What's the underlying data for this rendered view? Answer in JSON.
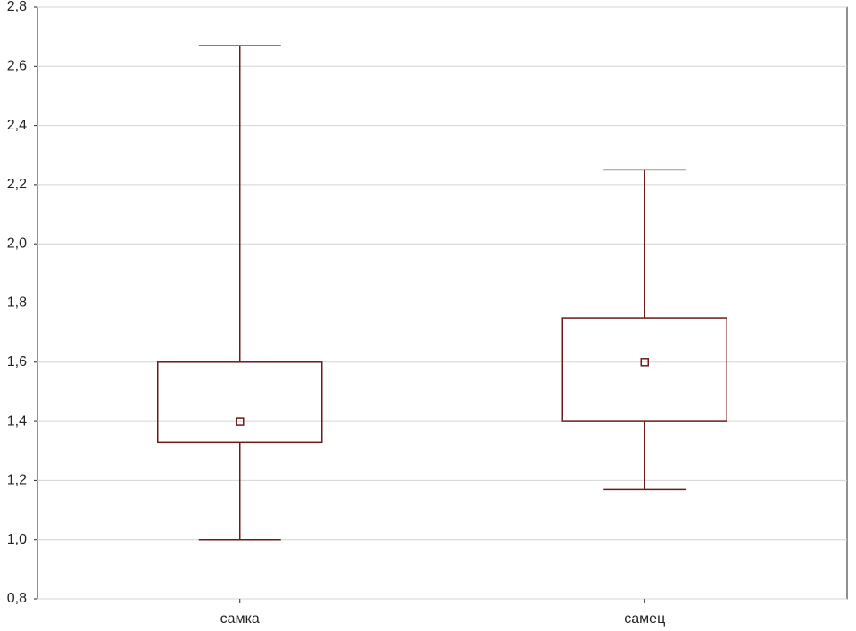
{
  "chart_data": {
    "type": "box",
    "categories": [
      "самка",
      "самец"
    ],
    "whisker_low": [
      1.0,
      1.17
    ],
    "q1": [
      1.33,
      1.4
    ],
    "median": [
      1.4,
      1.6
    ],
    "q3": [
      1.6,
      1.75
    ],
    "whisker_high": [
      2.67,
      2.25
    ],
    "color": "#6b1b1b",
    "ylim": [
      0.8,
      2.8
    ],
    "yticks": [
      {
        "value": 0.8,
        "label": "0,8"
      },
      {
        "value": 1.0,
        "label": "1,0"
      },
      {
        "value": 1.2,
        "label": "1,2"
      },
      {
        "value": 1.4,
        "label": "1,4"
      },
      {
        "value": 1.6,
        "label": "1,6"
      },
      {
        "value": 1.8,
        "label": "1,8"
      },
      {
        "value": 2.0,
        "label": "2,0"
      },
      {
        "value": 2.2,
        "label": "2,2"
      },
      {
        "value": 2.4,
        "label": "2,4"
      },
      {
        "value": 2.6,
        "label": "2,6"
      },
      {
        "value": 2.8,
        "label": "2,8"
      }
    ],
    "grid": true
  }
}
